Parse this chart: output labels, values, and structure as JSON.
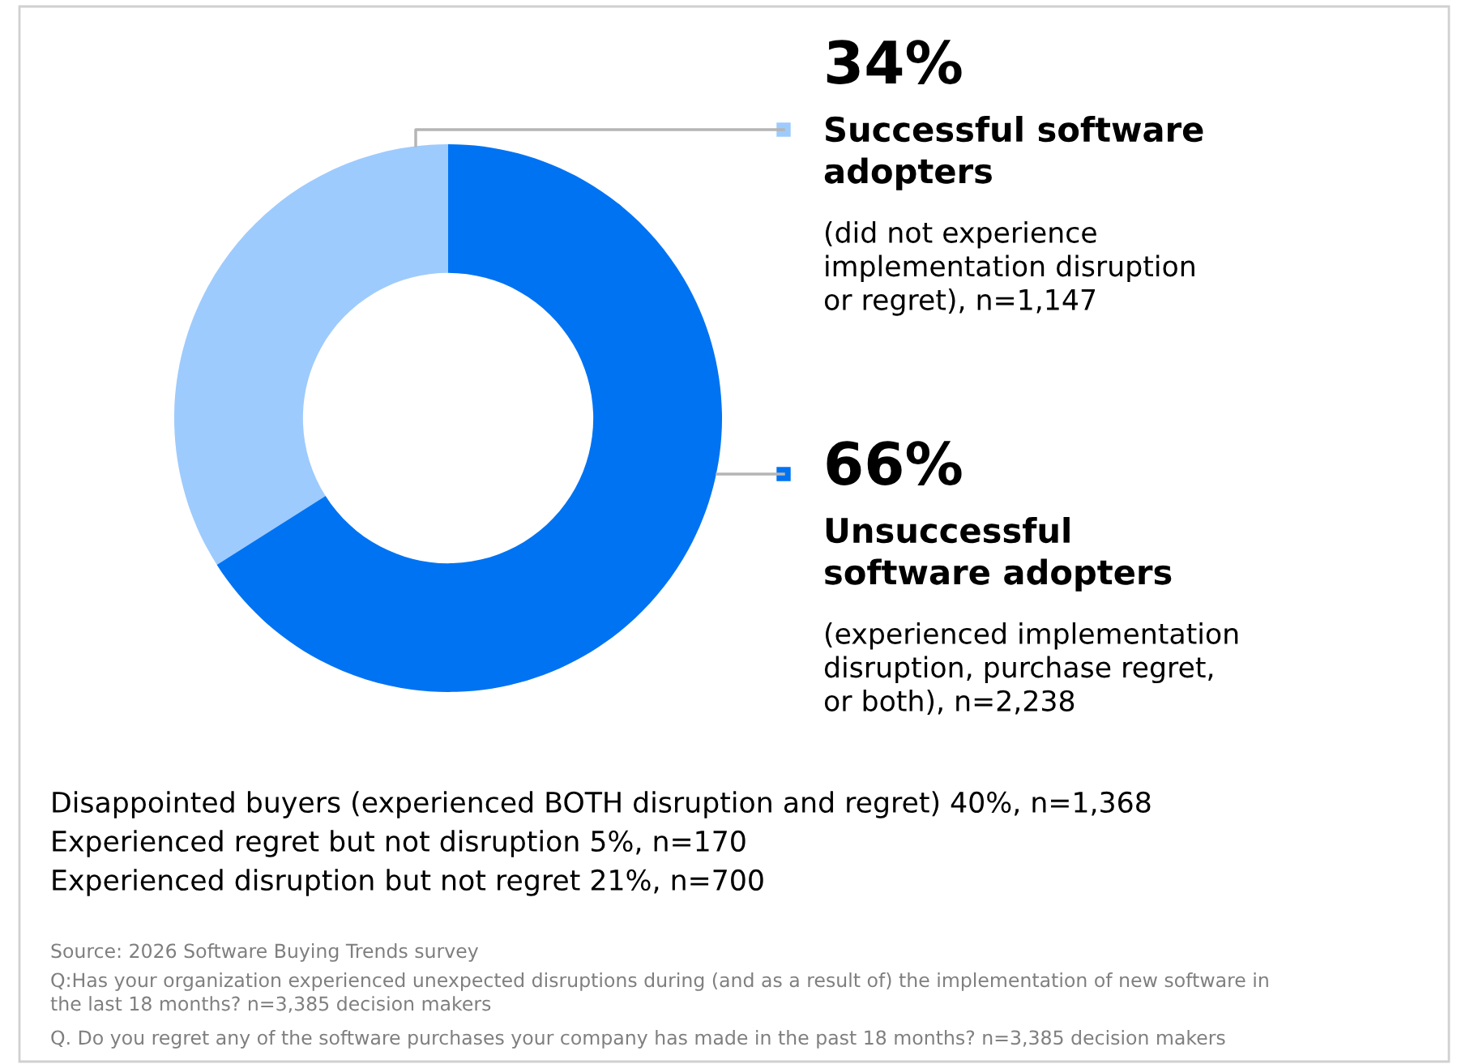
{
  "chart_data": {
    "type": "donut",
    "categories": [
      "Successful software\nadopters",
      "Unsuccessful\nsoftware adopters"
    ],
    "values": [
      34,
      66
    ],
    "colors": [
      "#9ecbfd",
      "#0073f2"
    ],
    "value_labels": [
      "34%",
      "66%"
    ],
    "annotations": [
      "(did not experience\nimplementation disruption\nor regret), n=1,147",
      "(experienced implementation\ndisruption, purchase regret,\nor both), n=2,238",
      "Disappointed buyers (experienced BOTH disruption and regret) 40%, n=1,368",
      "Experienced regret but not disruption 5%, n=170",
      "Experienced disruption but not regret 21%, n=700",
      "Source: 2026 Software Buying Trends survey",
      "Q:Has your organization experienced unexpected disruptions during (and as a result of) the implementation of new software in\nthe last 18 months? n=3,385 decision makers",
      "Q. Do you regret any of the software purchases your company has made in the past 18 months? n=3,385 decision makers"
    ]
  }
}
